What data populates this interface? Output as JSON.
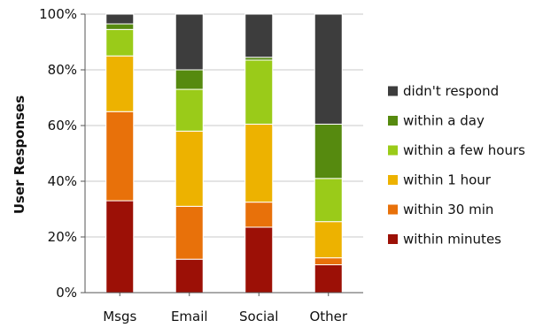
{
  "chart_data": {
    "type": "bar",
    "stacked": true,
    "orientation": "vertical",
    "categories": [
      "Msgs",
      "Email",
      "Social",
      "Other"
    ],
    "ylabel": "User Responses",
    "xlabel": "",
    "ylim": [
      0,
      100
    ],
    "y_ticks": [
      "0%",
      "20%",
      "40%",
      "60%",
      "80%",
      "100%"
    ],
    "grid": true,
    "legend_position": "right",
    "series": [
      {
        "name": "within minutes",
        "color": "#9c1006",
        "values": [
          33,
          12,
          23.5,
          10
        ]
      },
      {
        "name": "within 30 min",
        "color": "#e8710a",
        "values": [
          32,
          19,
          9,
          2.5
        ]
      },
      {
        "name": "within 1 hour",
        "color": "#edb200",
        "values": [
          20,
          27,
          28,
          13
        ]
      },
      {
        "name": "within a few hours",
        "color": "#9acb19",
        "values": [
          9.5,
          15,
          23,
          15.5
        ]
      },
      {
        "name": "within a day",
        "color": "#568a0f",
        "values": [
          2,
          7,
          1,
          19.5
        ]
      },
      {
        "name": "didn't respond",
        "color": "#3d3d3d",
        "values": [
          3.5,
          20,
          15.5,
          39.5
        ]
      }
    ]
  }
}
